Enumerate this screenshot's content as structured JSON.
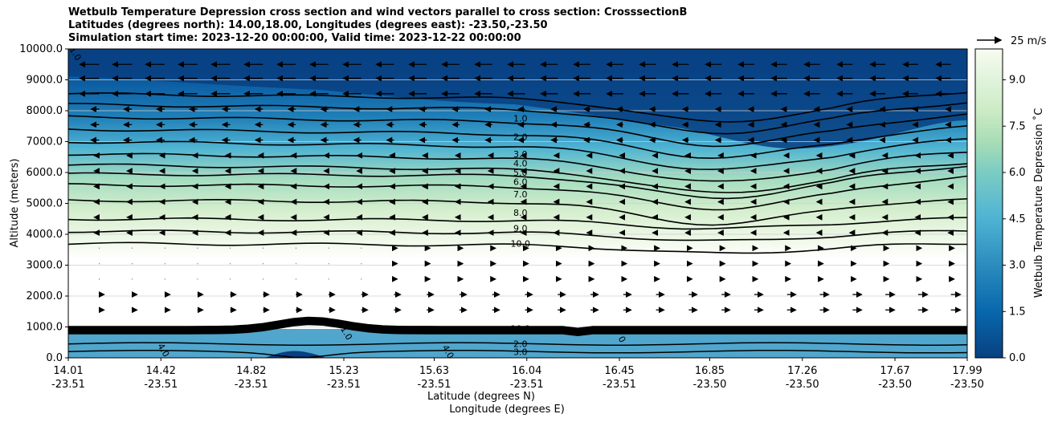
{
  "chart_data": {
    "type": "contour",
    "title_lines": [
      "Wetbulb Temperature Depression cross section and wind vectors parallel to cross section: CrosssectionB",
      "Latitudes (degrees north): 14.00,18.00, Longitudes (degrees east): -23.50,-23.50",
      "Simulation start time: 2023-12-20 00:00:00, Valid time: 2023-12-22 00:00:00"
    ],
    "ylabel": "Altitude (meters)",
    "xlabel_lat": "Latitude (degrees N)",
    "xlabel_lon": "Longitude (degrees E)",
    "ylim": [
      0,
      10000
    ],
    "yticks": [
      "0.0",
      "1000.0",
      "2000.0",
      "3000.0",
      "4000.0",
      "5000.0",
      "6000.0",
      "7000.0",
      "8000.0",
      "9000.0",
      "10000.0"
    ],
    "xticks": [
      {
        "lat": "14.01",
        "lon": "-23.51"
      },
      {
        "lat": "14.42",
        "lon": "-23.51"
      },
      {
        "lat": "14.82",
        "lon": "-23.51"
      },
      {
        "lat": "15.23",
        "lon": "-23.51"
      },
      {
        "lat": "15.63",
        "lon": "-23.51"
      },
      {
        "lat": "16.04",
        "lon": "-23.51"
      },
      {
        "lat": "16.45",
        "lon": "-23.51"
      },
      {
        "lat": "16.85",
        "lon": "-23.50"
      },
      {
        "lat": "17.26",
        "lon": "-23.50"
      },
      {
        "lat": "17.67",
        "lon": "-23.50"
      },
      {
        "lat": "17.99",
        "lon": "-23.50"
      }
    ],
    "colorbar": {
      "label": "Wetbulb Temperature Depression ˚C",
      "min": 0,
      "max": 10,
      "ticks": [
        "0.0",
        "1.5",
        "3.0",
        "4.5",
        "6.0",
        "7.5",
        "9.0"
      ],
      "colormap": "GnBu_r"
    },
    "quiver_key": "25 m/s",
    "contour_labels_upper": [
      {
        "text": "1.0",
        "alt": 7750
      },
      {
        "text": "2.0",
        "alt": 7150
      },
      {
        "text": "3.0",
        "alt": 6600
      },
      {
        "text": "4.0",
        "alt": 6300
      },
      {
        "text": "5.0",
        "alt": 6000
      },
      {
        "text": "6.0",
        "alt": 5700
      },
      {
        "text": "7.0",
        "alt": 5300
      },
      {
        "text": "8.0",
        "alt": 4700
      },
      {
        "text": "9.0",
        "alt": 4200
      },
      {
        "text": "10.0",
        "alt": 3700
      }
    ],
    "contour_labels_lower": [
      {
        "text": "10.0",
        "alt": 950
      },
      {
        "text": "2.0",
        "alt": 450
      },
      {
        "text": "3.0",
        "alt": 200
      }
    ],
    "contour_labels_rotated": [
      {
        "text": "4.0",
        "lat": 14.42,
        "alt": 200
      },
      {
        "text": "1.0",
        "lat": 15.23,
        "alt": 750
      },
      {
        "text": "4.0",
        "lat": 15.68,
        "alt": 150
      },
      {
        "text": "0",
        "lat": 16.45,
        "alt": 550
      },
      {
        "text": "1.0",
        "lat": 14.03,
        "alt": 9800
      }
    ]
  }
}
